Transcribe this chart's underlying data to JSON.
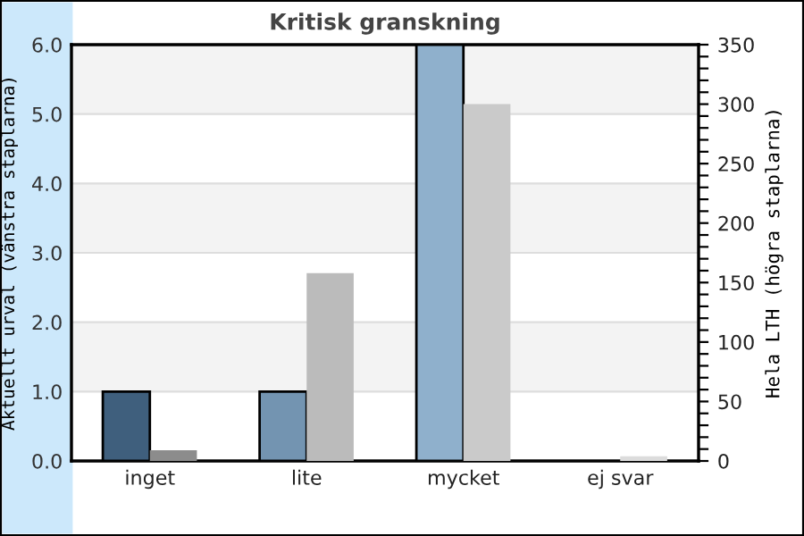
{
  "chart_data": {
    "type": "bar",
    "title": "Kritisk granskning",
    "ylabel": "Aktuellt urval (vänstra staplarna)",
    "y2label": "Hela LTH (högra staplarna)",
    "categories": [
      "inget",
      "lite",
      "mycket",
      "ej svar"
    ],
    "series": [
      {
        "colors": [
          "#3f5f7d",
          "#7394b1",
          "#8fb0cc",
          "#8fb0cc"
        ],
        "values": [
          1.0,
          1.0,
          6.0,
          0
        ]
      },
      {
        "colors": [
          "#8c8c8c",
          "#bbbbbb",
          "#cacaca",
          "#dcdcdc"
        ],
        "values": [
          9,
          158,
          300,
          4
        ],
        "axis": "y2"
      }
    ],
    "ylim": [
      0,
      6
    ],
    "yticks": [
      {
        "value": 0,
        "label": "0.0"
      },
      {
        "value": 1,
        "label": "1.0"
      },
      {
        "value": 2,
        "label": "2.0"
      },
      {
        "value": 3,
        "label": "3.0"
      },
      {
        "value": 4,
        "label": "4.0"
      },
      {
        "value": 5,
        "label": "5.0"
      },
      {
        "value": 6,
        "label": "6.0"
      }
    ],
    "y2lim": [
      0,
      350
    ],
    "y2ticks": [
      0,
      {
        "value": 10,
        "label": null
      },
      {
        "value": 20,
        "label": null
      },
      {
        "value": 30,
        "label": null
      },
      {
        "value": 40,
        "label": null
      },
      50,
      {
        "value": 60,
        "label": null
      },
      {
        "value": 70,
        "label": null
      },
      {
        "value": 80,
        "label": null
      },
      {
        "value": 90,
        "label": null
      },
      100,
      {
        "value": 110,
        "label": null
      },
      {
        "value": 120,
        "label": null
      },
      {
        "value": 130,
        "label": null
      },
      {
        "value": 140,
        "label": null
      },
      150,
      {
        "value": 160,
        "label": null
      },
      {
        "value": 170,
        "label": null
      },
      {
        "value": 180,
        "label": null
      },
      {
        "value": 190,
        "label": null
      },
      200,
      {
        "value": 210,
        "label": null
      },
      {
        "value": 220,
        "label": null
      },
      {
        "value": 230,
        "label": null
      },
      {
        "value": 240,
        "label": null
      },
      250,
      {
        "value": 260,
        "label": null
      },
      {
        "value": 270,
        "label": null
      },
      {
        "value": 280,
        "label": null
      },
      {
        "value": 290,
        "label": null
      },
      300,
      {
        "value": 310,
        "label": null
      },
      {
        "value": 320,
        "label": null
      },
      {
        "value": 330,
        "label": null
      },
      {
        "value": 340,
        "label": null
      },
      350
    ],
    "grid": "y"
  }
}
